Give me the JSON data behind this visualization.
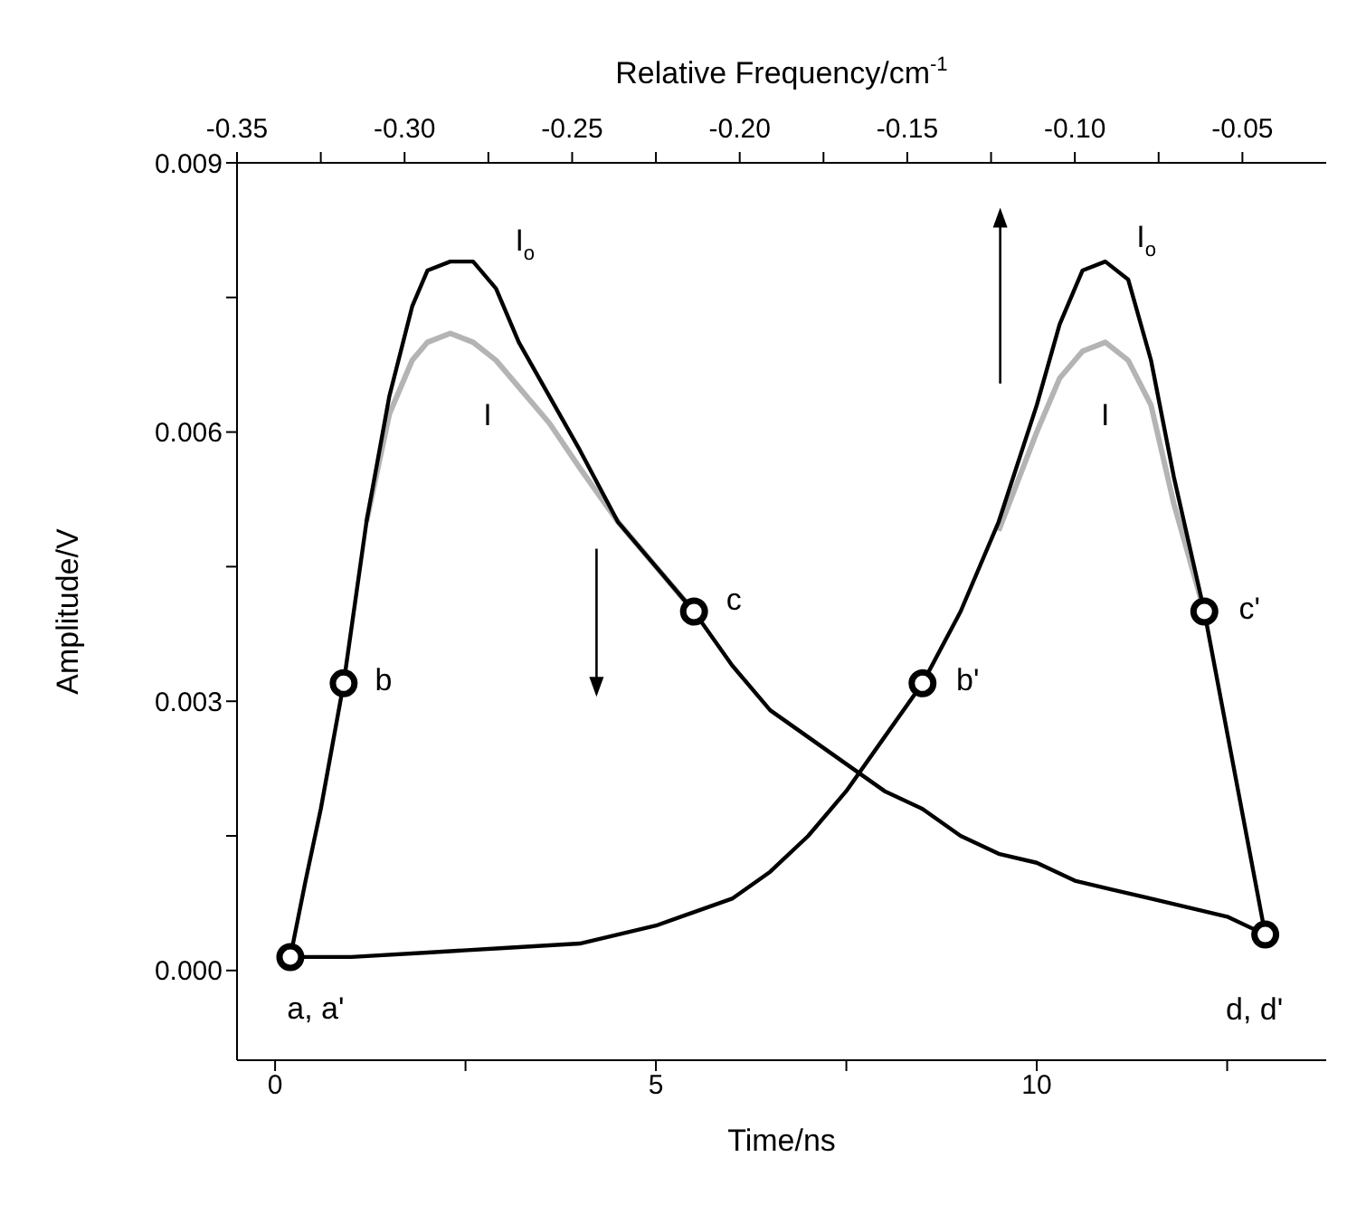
{
  "chart_data": {
    "type": "line",
    "xlabel": "Time/ns",
    "ylabel": "Amplitude/V",
    "x2label": "Relative Frequency/cm$^{-1}$",
    "xlim": [
      -0.5,
      13.8
    ],
    "xticks": [
      0,
      {
        "value": 2.5,
        "label": null
      },
      5,
      {
        "value": 7.5,
        "label": null
      },
      10,
      {
        "value": 12.5,
        "label": null
      }
    ],
    "x2lim": [
      -0.35,
      -0.025
    ],
    "x2ticks": [
      -0.35,
      {
        "value": -0.325,
        "label": null
      },
      {
        "value": -0.3,
        "label": "-0.30"
      },
      {
        "value": -0.275,
        "label": null
      },
      -0.25,
      {
        "value": -0.225,
        "label": null
      },
      {
        "value": -0.2,
        "label": "-0.20"
      },
      {
        "value": -0.175,
        "label": null
      },
      -0.15,
      {
        "value": -0.125,
        "label": null
      },
      {
        "value": -0.1,
        "label": "-0.10"
      },
      {
        "value": -0.075,
        "label": null
      },
      -0.05
    ],
    "ylim": [
      -0.001,
      0.009
    ],
    "yticks": [
      {
        "value": 0,
        "label": "0.000"
      },
      {
        "value": 0.0015,
        "label": null
      },
      0.003,
      {
        "value": 0.0045,
        "label": null
      },
      0.006,
      {
        "value": 0.0075,
        "label": null
      },
      0.009
    ],
    "grid": false,
    "marker": "none",
    "line_style": "solid",
    "series": [
      {
        "color": "#b4b4b4",
        "x": [
          1.2,
          1.5,
          1.8,
          2.0,
          2.3,
          2.6,
          2.9,
          3.2,
          3.6,
          4.0,
          4.5,
          5.0,
          5.5
        ],
        "values": [
          0.005,
          0.0062,
          0.0068,
          0.007,
          0.0071,
          0.007,
          0.0068,
          0.0065,
          0.0061,
          0.0056,
          0.005,
          0.0045,
          0.004
        ]
      },
      {
        "color": "#b4b4b4",
        "x": [
          9.5,
          10,
          10.3,
          10.6,
          10.9,
          11.2,
          11.5,
          11.8,
          12.2
        ],
        "values": [
          0.0049,
          0.006,
          0.0066,
          0.0069,
          0.007,
          0.0068,
          0.0063,
          0.0052,
          0.004
        ]
      },
      {
        "color": "#000000",
        "x": [
          0.2,
          0.4,
          0.6,
          0.9,
          1.2,
          1.5,
          1.8,
          2.0,
          2.3,
          2.6,
          2.9,
          3.2,
          3.6,
          4.0,
          4.5,
          5.0,
          5.5,
          6.0,
          6.5,
          7.0,
          7.5,
          8.0,
          8.5,
          9.0,
          9.5,
          10,
          10.5,
          11,
          11.5,
          12,
          12.5,
          13.0
        ],
        "values": [
          0.00015,
          0.001,
          0.0018,
          0.0032,
          0.005,
          0.0064,
          0.0074,
          0.0078,
          0.0079,
          0.0079,
          0.0076,
          0.007,
          0.0064,
          0.0058,
          0.005,
          0.0045,
          0.004,
          0.0034,
          0.0029,
          0.0026,
          0.0023,
          0.002,
          0.0018,
          0.0015,
          0.0013,
          0.0012,
          0.001,
          0.0009,
          0.0008,
          0.0007,
          0.0006,
          0.0004
        ]
      },
      {
        "color": "#000000",
        "x": [
          0.2,
          1,
          2,
          3,
          4,
          5,
          6,
          6.5,
          7,
          7.5,
          8,
          8.5,
          9,
          9.5,
          10,
          10.3,
          10.6,
          10.9,
          11.2,
          11.5,
          11.8,
          12.2,
          12.6,
          13.0
        ],
        "values": [
          0.00015,
          0.00015,
          0.0002,
          0.00025,
          0.0003,
          0.0005,
          0.0008,
          0.0011,
          0.0015,
          0.002,
          0.0026,
          0.0032,
          0.004,
          0.005,
          0.0063,
          0.0072,
          0.0078,
          0.0079,
          0.0077,
          0.0068,
          0.0055,
          0.004,
          0.0022,
          0.0004
        ]
      },
      {
        "type": "scatter",
        "marker": "circle",
        "color": "#000000",
        "x": [
          0.2,
          0.9,
          5.5,
          13.0,
          8.5,
          12.2
        ],
        "values": [
          0.00015,
          0.0032,
          0.004,
          0.0004,
          0.0032,
          0.004
        ]
      }
    ],
    "annotations": [
      {
        "text": "a, a'",
        "x": 0.2,
        "y": 0.00015
      },
      {
        "text": "b",
        "x": 0.9,
        "y": 0.0032
      },
      {
        "text": "c",
        "x": 5.5,
        "y": 0.004
      },
      {
        "text": "d, d'",
        "x": 13.0,
        "y": 0.0004
      },
      {
        "text": "b'",
        "x": 8.5,
        "y": 0.0032
      },
      {
        "text": "c'",
        "x": 12.2,
        "y": 0.004
      },
      {
        "text": "I$_{o}$",
        "x": 2.9,
        "y": 0.0076
      },
      {
        "text": "I$_{o}$",
        "x": 11.2,
        "y": 0.0077
      },
      {
        "text": "I",
        "x": 2.6,
        "y": 0.007
      },
      {
        "text": "I",
        "x": 10.9,
        "y": 0.007
      }
    ]
  }
}
